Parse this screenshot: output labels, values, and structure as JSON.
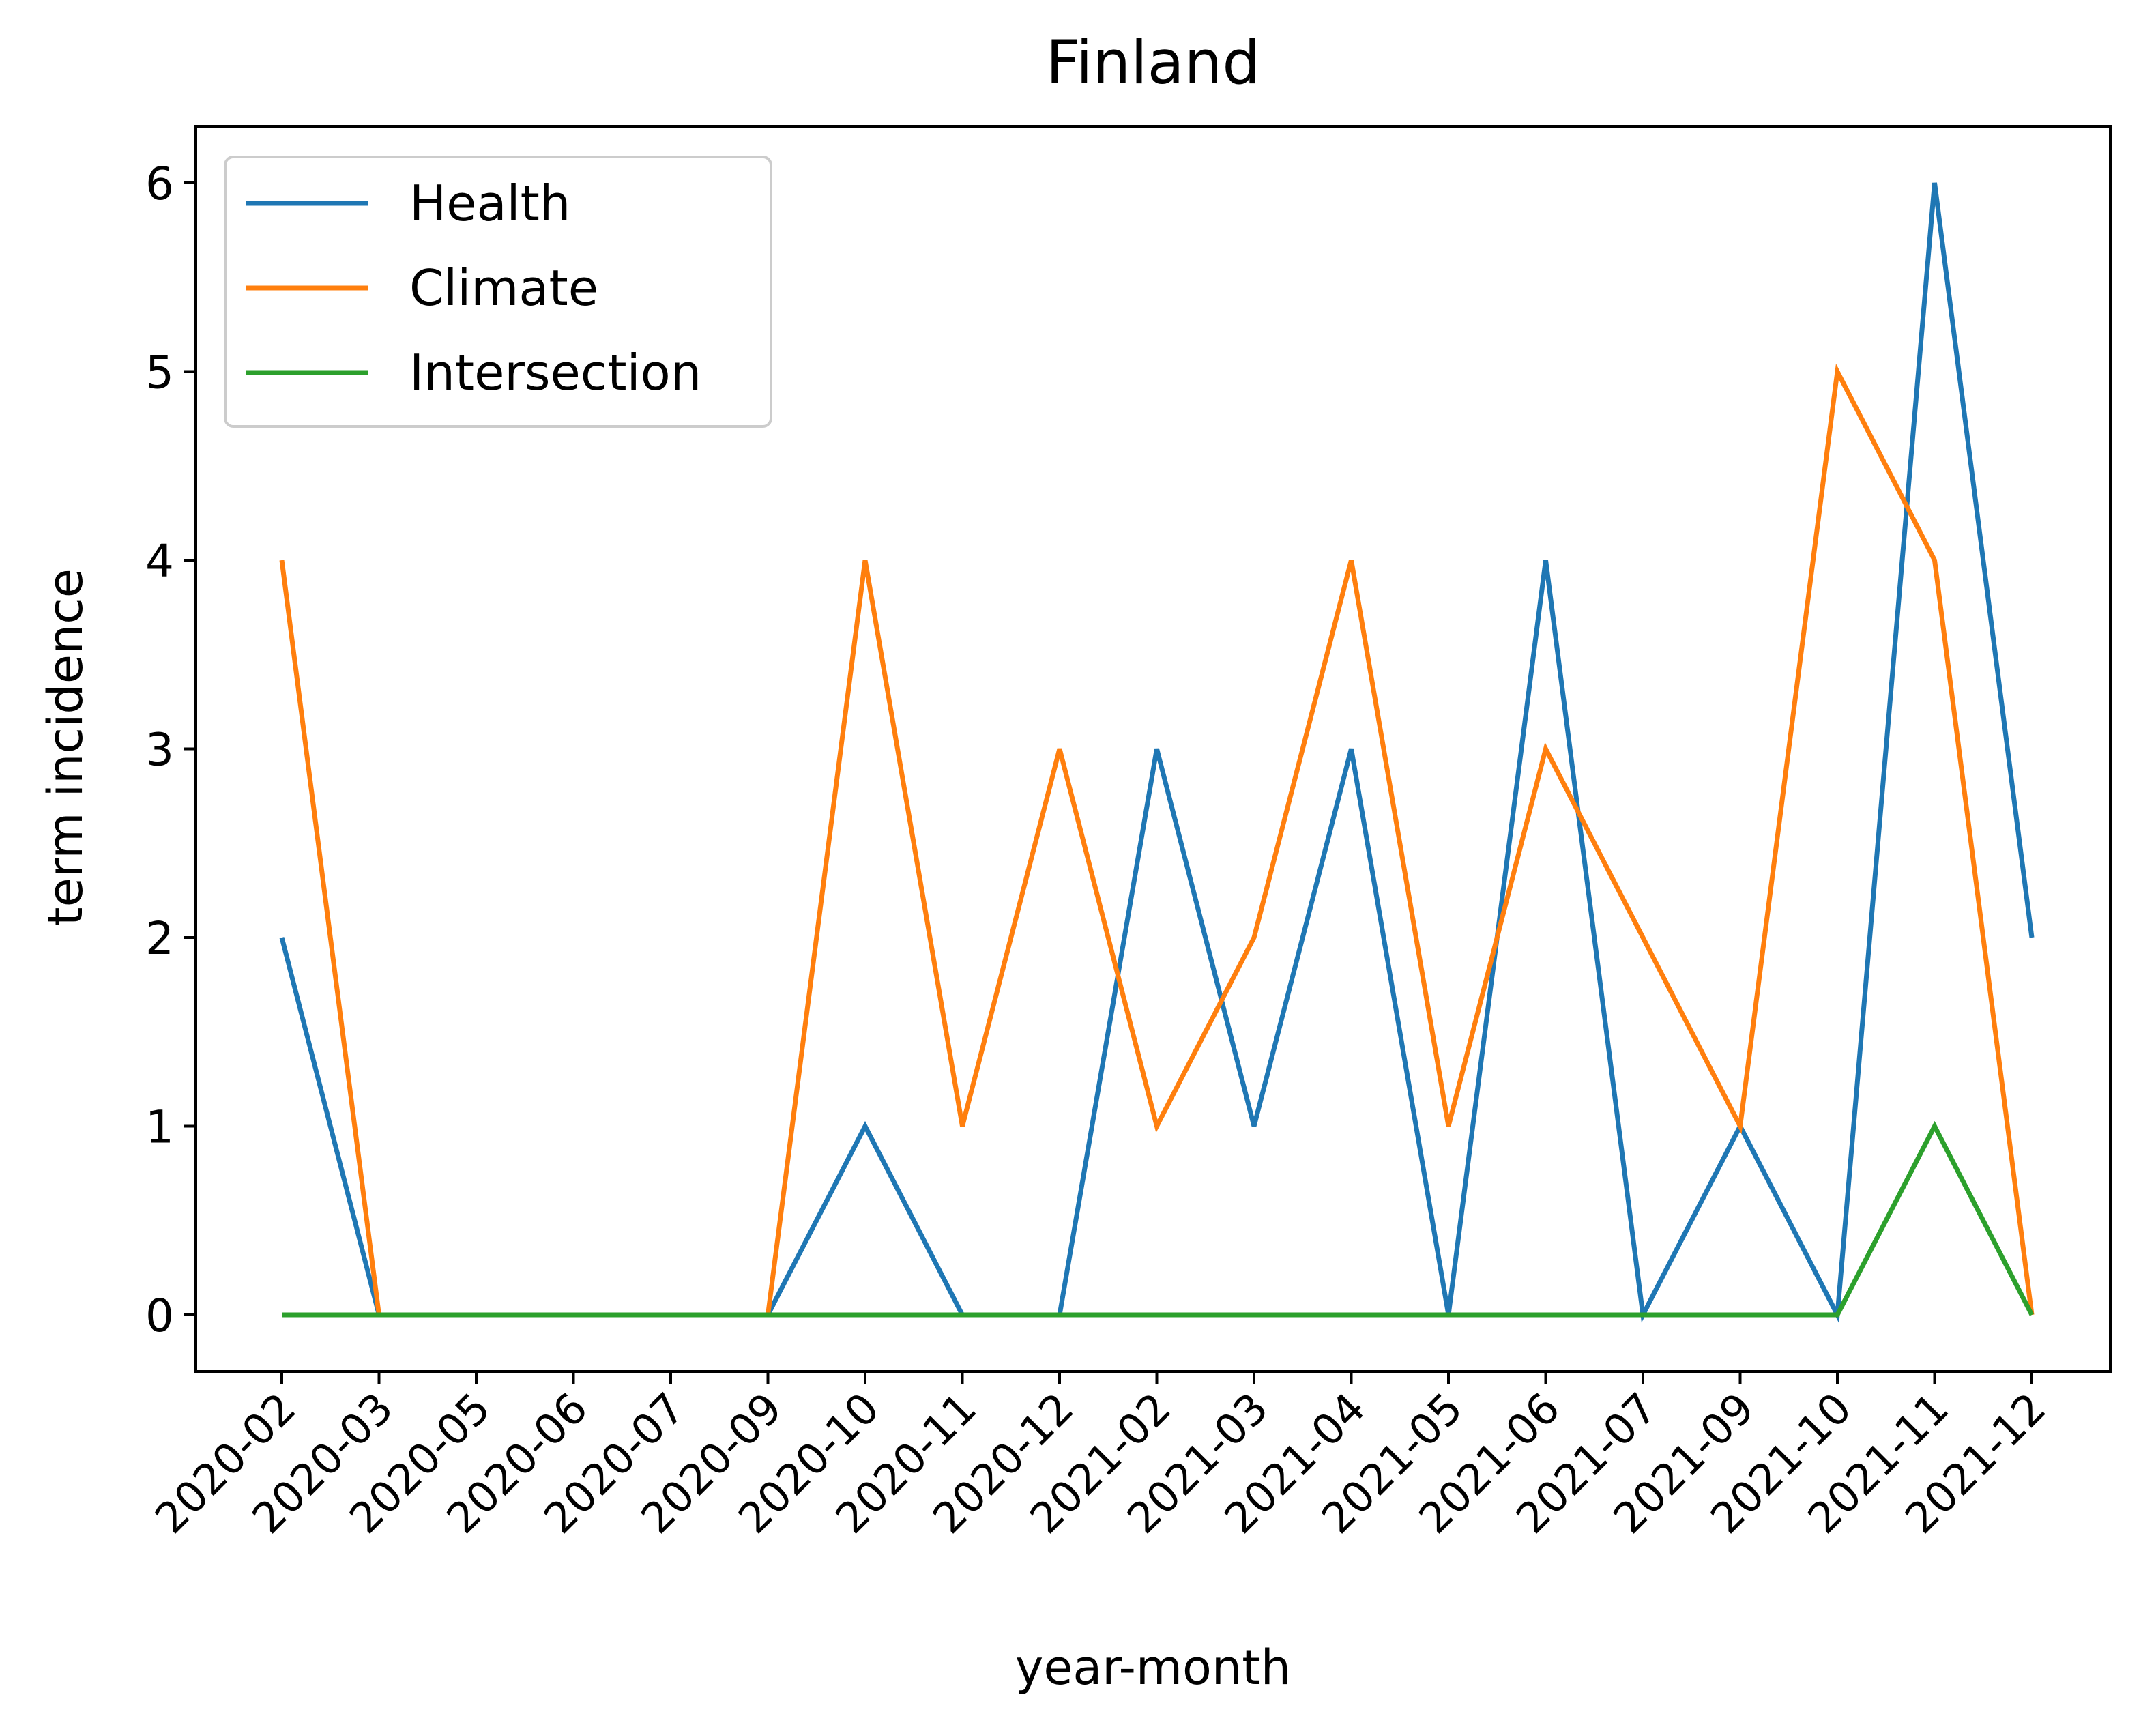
{
  "chart_data": {
    "type": "line",
    "title": "Finland",
    "xlabel": "year-month",
    "ylabel": "term incidence",
    "categories": [
      "2020-02",
      "2020-03",
      "2020-05",
      "2020-06",
      "2020-07",
      "2020-09",
      "2020-10",
      "2020-11",
      "2020-12",
      "2021-02",
      "2021-03",
      "2021-04",
      "2021-05",
      "2021-06",
      "2021-07",
      "2021-09",
      "2021-10",
      "2021-11",
      "2021-12"
    ],
    "series": [
      {
        "name": "Health",
        "color": "#1f77b4",
        "values": [
          2,
          0,
          0,
          0,
          0,
          0,
          1,
          0,
          0,
          3,
          1,
          3,
          0,
          4,
          0,
          1,
          0,
          6,
          2
        ]
      },
      {
        "name": "Climate",
        "color": "#ff7f0e",
        "values": [
          4,
          0,
          0,
          0,
          0,
          0,
          4,
          1,
          3,
          1,
          2,
          4,
          1,
          3,
          2,
          1,
          5,
          4,
          0
        ]
      },
      {
        "name": "Intersection",
        "color": "#2ca02c",
        "values": [
          0,
          0,
          0,
          0,
          0,
          0,
          0,
          0,
          0,
          0,
          0,
          0,
          0,
          0,
          0,
          0,
          0,
          1,
          0
        ]
      }
    ],
    "yticks": [
      0,
      1,
      2,
      3,
      4,
      5,
      6
    ],
    "ylim": [
      -0.3,
      6.3
    ],
    "grid": false,
    "legend": "upper-left"
  }
}
